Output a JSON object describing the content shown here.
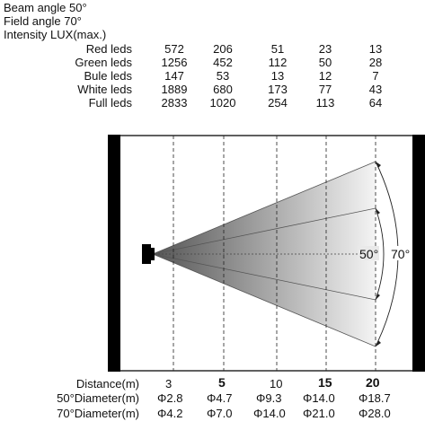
{
  "header": {
    "beam_angle": "Beam angle 50°",
    "field_angle": "Field angle 70°",
    "intensity_title": "Intensity LUX(max.)"
  },
  "intensity_table": {
    "rows": [
      {
        "label": "Red leds",
        "values": [
          "572",
          "206",
          "51",
          "23",
          "13"
        ]
      },
      {
        "label": "Green leds",
        "values": [
          "1256",
          "452",
          "112",
          "50",
          "28"
        ]
      },
      {
        "label": "Bule leds",
        "values": [
          "147",
          "53",
          "13",
          "12",
          "7"
        ]
      },
      {
        "label": "White leds",
        "values": [
          "1889",
          "680",
          "173",
          "77",
          "43"
        ]
      },
      {
        "label": "Full leds",
        "values": [
          "2833",
          "1020",
          "254",
          "113",
          "64"
        ]
      }
    ]
  },
  "beam_labels": {
    "beam": "50°",
    "field": "70°"
  },
  "distance_table": {
    "rows": [
      {
        "label": "Distance(m)",
        "values": [
          "3",
          "5",
          "10",
          "15",
          "20"
        ]
      },
      {
        "label": "50°Diameter(m)",
        "values": [
          "Φ2.8",
          "Φ4.7",
          "Φ9.3",
          "Φ14.0",
          "Φ18.7"
        ]
      },
      {
        "label": "70°Diameter(m)",
        "values": [
          "Φ4.2",
          "Φ7.0",
          "Φ14.0",
          "Φ21.0",
          "Φ28.0"
        ]
      }
    ]
  },
  "colors": {
    "frame": "#000000",
    "beam_dark": "#555555",
    "beam_light": "#f0f0f0"
  }
}
